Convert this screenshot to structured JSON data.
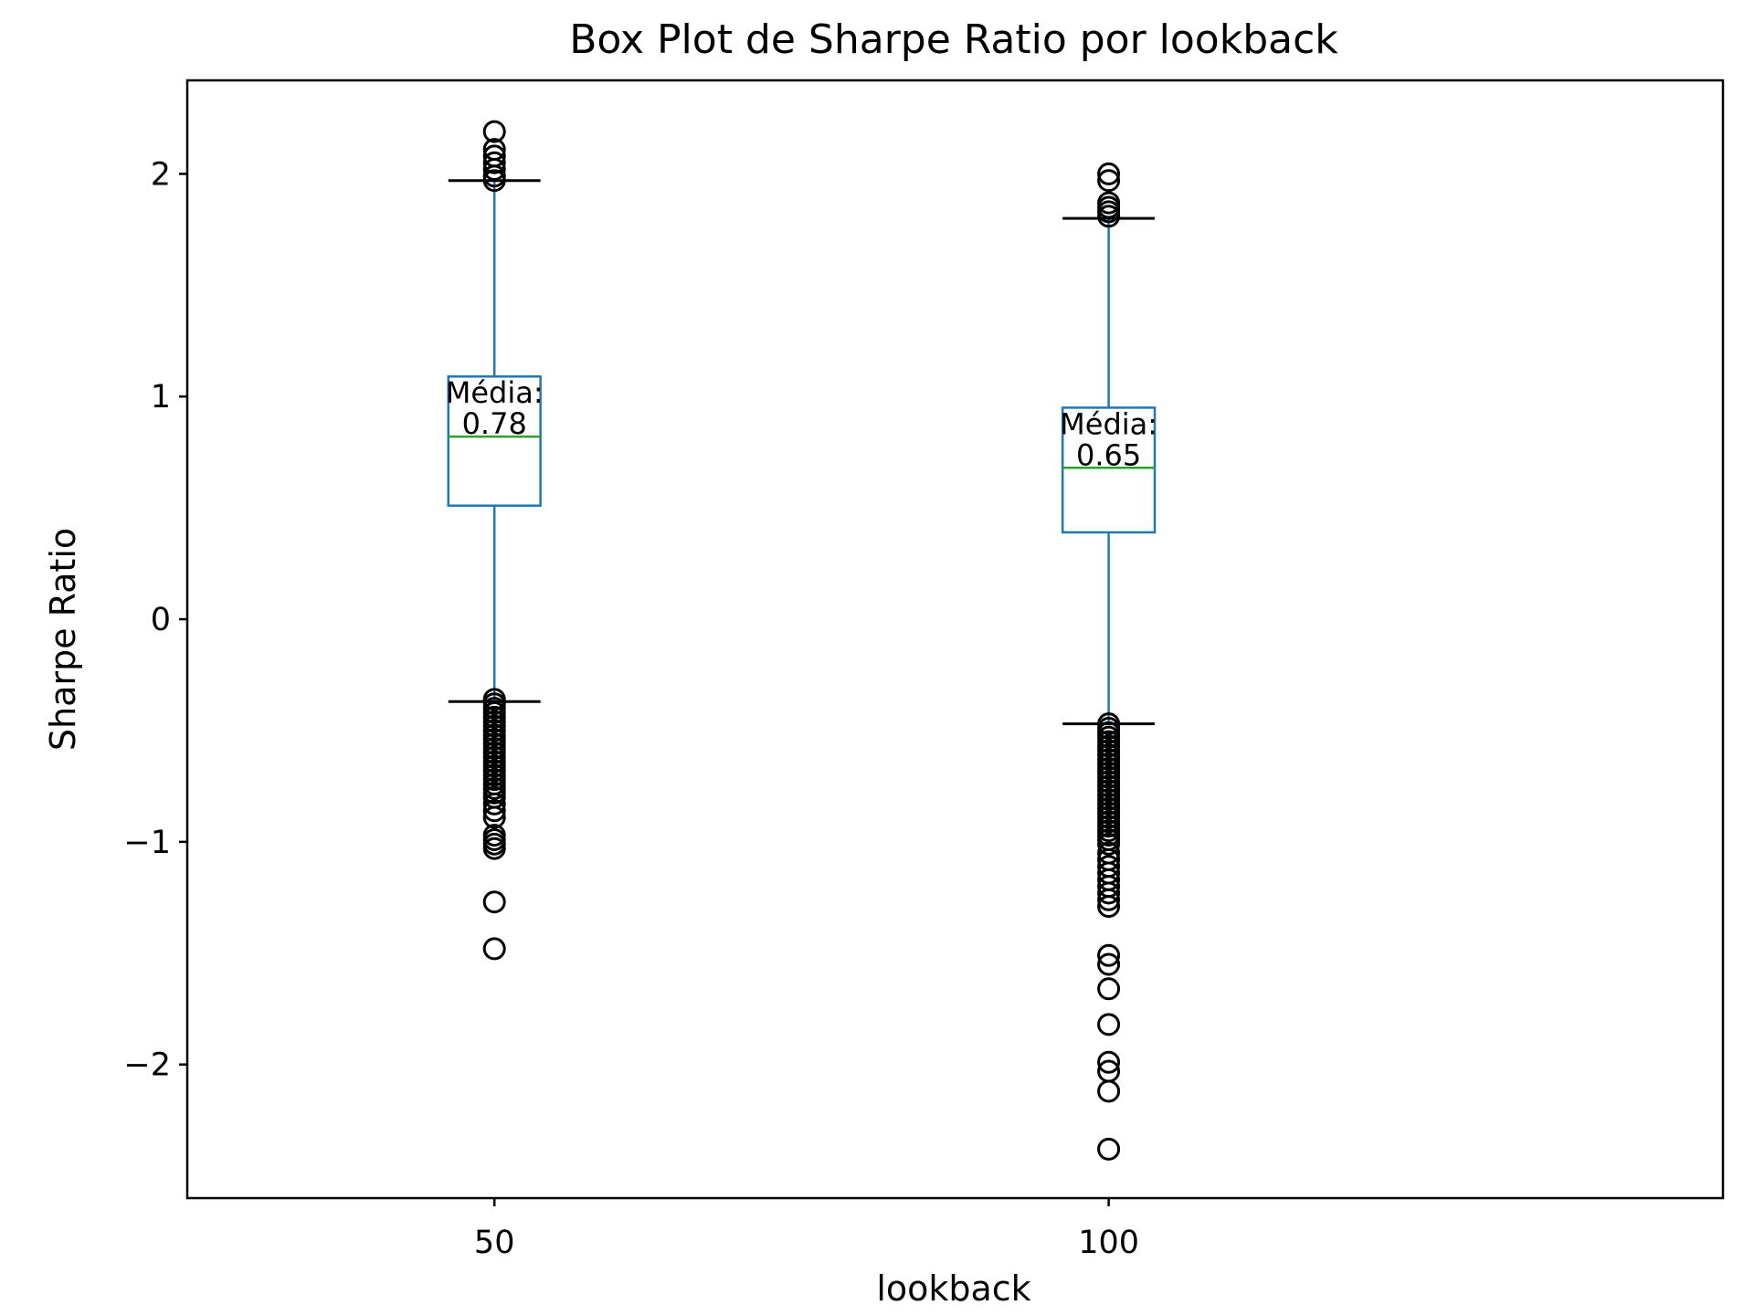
{
  "chart_data": {
    "type": "box",
    "title": "Box Plot de Sharpe Ratio por lookback",
    "xlabel": "lookback",
    "ylabel": "Sharpe Ratio",
    "ylim": [
      -2.6,
      2.42
    ],
    "yticks": [
      -2,
      -1,
      0,
      1,
      2
    ],
    "ytick_labels": [
      "−2",
      "−1",
      "0",
      "1",
      "2"
    ],
    "grid": false,
    "colors": {
      "box": "#1f77b4",
      "whisker": "#1f77b4",
      "cap": "#000000",
      "median": "#2ca02c",
      "flier": "#000000",
      "axes": "#000000"
    },
    "groups": [
      {
        "category": "50",
        "whisker_low": -0.37,
        "q1": 0.51,
        "median": 0.82,
        "q3": 1.09,
        "whisker_high": 1.97,
        "mean_label": "Média:",
        "mean_value": "0.78",
        "fliers": [
          2.19,
          2.11,
          2.08,
          2.05,
          2.02,
          1.99,
          1.97,
          -0.36,
          -0.38,
          -0.4,
          -0.42,
          -0.44,
          -0.46,
          -0.48,
          -0.5,
          -0.52,
          -0.54,
          -0.56,
          -0.58,
          -0.6,
          -0.62,
          -0.64,
          -0.66,
          -0.68,
          -0.7,
          -0.72,
          -0.74,
          -0.76,
          -0.78,
          -0.8,
          -0.83,
          -0.86,
          -0.89,
          -0.97,
          -0.99,
          -1.01,
          -1.03,
          -1.27,
          -1.48
        ]
      },
      {
        "category": "100",
        "whisker_low": -0.47,
        "q1": 0.39,
        "median": 0.68,
        "q3": 0.95,
        "whisker_high": 1.8,
        "mean_label": "Média:",
        "mean_value": "0.65",
        "fliers": [
          2.0,
          1.97,
          1.87,
          1.85,
          1.83,
          1.81,
          -0.47,
          -0.49,
          -0.51,
          -0.53,
          -0.55,
          -0.57,
          -0.59,
          -0.61,
          -0.63,
          -0.65,
          -0.67,
          -0.69,
          -0.71,
          -0.73,
          -0.75,
          -0.77,
          -0.79,
          -0.81,
          -0.83,
          -0.85,
          -0.87,
          -0.89,
          -0.91,
          -0.93,
          -0.95,
          -0.97,
          -0.99,
          -1.01,
          -1.05,
          -1.08,
          -1.11,
          -1.14,
          -1.17,
          -1.2,
          -1.23,
          -1.26,
          -1.29,
          -1.51,
          -1.55,
          -1.66,
          -1.82,
          -1.99,
          -2.03,
          -2.12,
          -2.38
        ]
      }
    ]
  }
}
